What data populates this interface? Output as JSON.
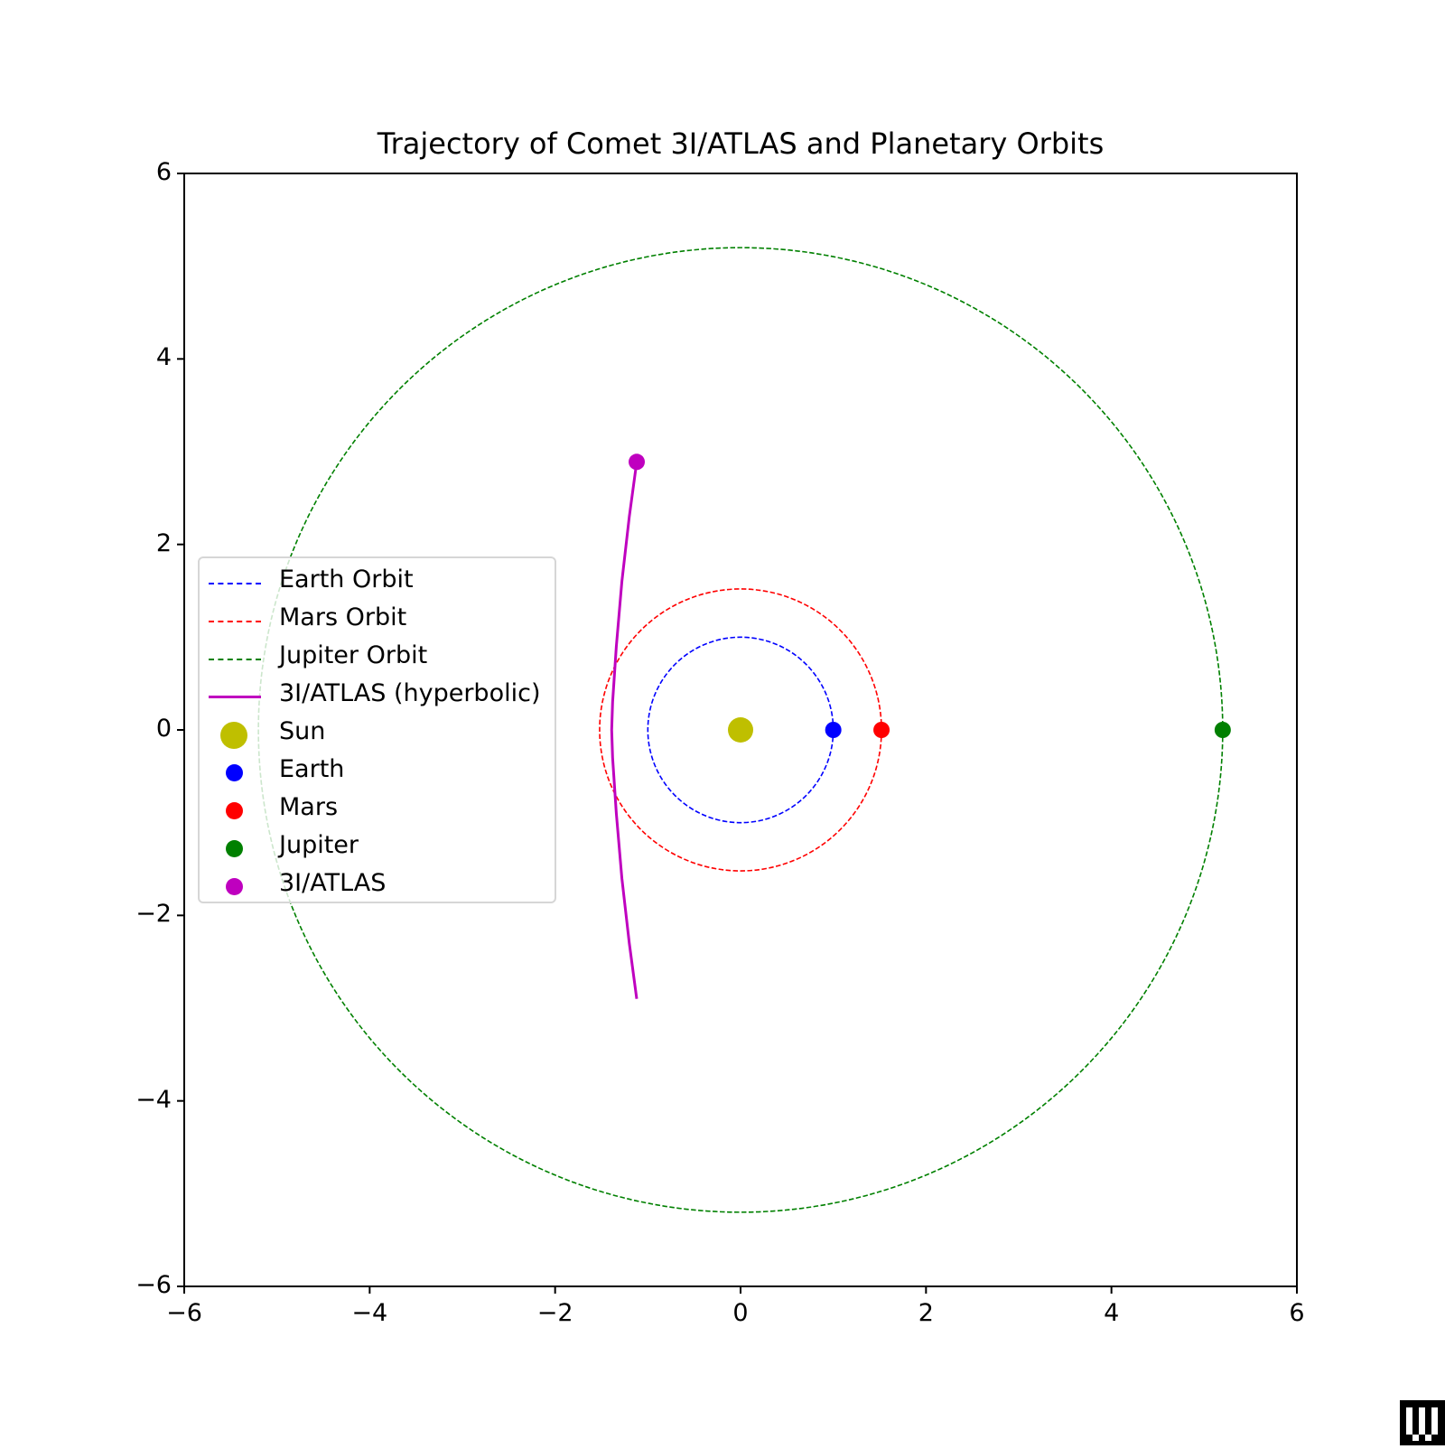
{
  "chart_data": {
    "type": "line",
    "title": "Trajectory of Comet 3I/ATLAS and Planetary Orbits",
    "xlabel": "",
    "ylabel": "",
    "xlim": [
      -6,
      6
    ],
    "ylim": [
      -6,
      6
    ],
    "xticks": [
      "−6",
      "−4",
      "−2",
      "0",
      "2",
      "4",
      "6"
    ],
    "yticks": [
      "6",
      "4",
      "2",
      "0",
      "−2",
      "−4",
      "−6"
    ],
    "grid": false,
    "aspect": "equal",
    "legend_position": "center left",
    "series": [
      {
        "name": "Earth Orbit",
        "kind": "circle",
        "radius": 1.0,
        "center": [
          0,
          0
        ],
        "color": "#0000ff",
        "linestyle": "dashed"
      },
      {
        "name": "Mars Orbit",
        "kind": "circle",
        "radius": 1.52,
        "center": [
          0,
          0
        ],
        "color": "#ff0000",
        "linestyle": "dashed"
      },
      {
        "name": "Jupiter Orbit",
        "kind": "circle",
        "radius": 5.2,
        "center": [
          0,
          0
        ],
        "color": "#008000",
        "linestyle": "dashed"
      },
      {
        "name": "3I/ATLAS (hyperbolic)",
        "kind": "curve",
        "color": "#bf00bf",
        "linestyle": "solid",
        "points": [
          [
            -1.12,
            -2.9
          ],
          [
            -1.2,
            -2.3
          ],
          [
            -1.28,
            -1.6
          ],
          [
            -1.34,
            -0.9
          ],
          [
            -1.38,
            -0.3
          ],
          [
            -1.39,
            0.0
          ],
          [
            -1.38,
            0.3
          ],
          [
            -1.34,
            0.9
          ],
          [
            -1.28,
            1.6
          ],
          [
            -1.2,
            2.3
          ],
          [
            -1.12,
            2.89
          ]
        ]
      },
      {
        "name": "Sun",
        "kind": "marker",
        "x": 0,
        "y": 0,
        "color": "#bfbf00",
        "size": "large"
      },
      {
        "name": "Earth",
        "kind": "marker",
        "x": 1.0,
        "y": 0,
        "color": "#0000ff"
      },
      {
        "name": "Mars",
        "kind": "marker",
        "x": 1.52,
        "y": 0,
        "color": "#ff0000"
      },
      {
        "name": "Jupiter",
        "kind": "marker",
        "x": 5.2,
        "y": 0,
        "color": "#008000"
      },
      {
        "name": "3I/ATLAS",
        "kind": "marker",
        "x": -1.12,
        "y": 2.89,
        "color": "#bf00bf"
      }
    ]
  },
  "legend": {
    "items": [
      {
        "label": "Earth Orbit"
      },
      {
        "label": "Mars Orbit"
      },
      {
        "label": "Jupiter Orbit"
      },
      {
        "label": "3I/ATLAS (hyperbolic)"
      },
      {
        "label": "Sun"
      },
      {
        "label": "Earth"
      },
      {
        "label": "Mars"
      },
      {
        "label": "Jupiter"
      },
      {
        "label": "3I/ATLAS"
      }
    ]
  }
}
